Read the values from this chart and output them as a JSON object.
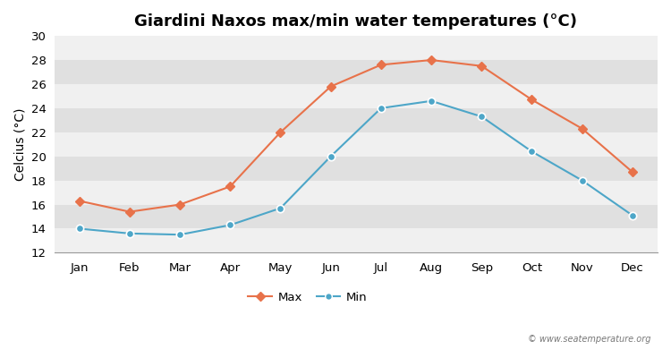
{
  "title": "Giardini Naxos max/min water temperatures (°C)",
  "xlabel_labels": [
    "Jan",
    "Feb",
    "Mar",
    "Apr",
    "May",
    "Jun",
    "Jul",
    "Aug",
    "Sep",
    "Oct",
    "Nov",
    "Dec"
  ],
  "ylabel": "Celcius (°C)",
  "max_values": [
    16.3,
    15.4,
    16.0,
    17.5,
    22.0,
    25.8,
    27.6,
    28.0,
    27.5,
    24.7,
    22.3,
    18.7
  ],
  "min_values": [
    14.0,
    13.6,
    13.5,
    14.3,
    15.7,
    20.0,
    24.0,
    24.6,
    23.3,
    20.4,
    18.0,
    15.1
  ],
  "max_color": "#e8724a",
  "min_color": "#4da6c8",
  "plot_bg_light": "#f0f0f0",
  "plot_bg_dark": "#e0e0e0",
  "fig_bg": "#ffffff",
  "ylim": [
    12,
    30
  ],
  "yticks": [
    12,
    14,
    16,
    18,
    20,
    22,
    24,
    26,
    28,
    30
  ],
  "legend_max": "Max",
  "legend_min": "Min",
  "watermark": "© www.seatemperature.org",
  "title_fontsize": 13,
  "axis_label_fontsize": 10,
  "tick_fontsize": 9.5
}
